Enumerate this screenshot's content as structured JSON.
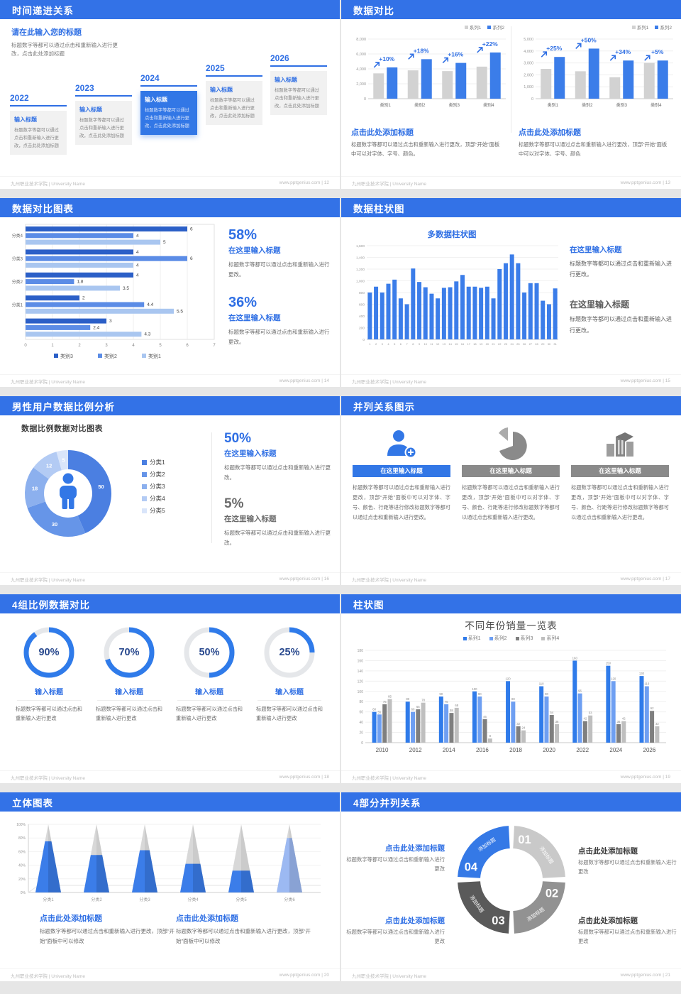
{
  "footer": {
    "left": "九州职业技术学院 | University Name",
    "site": "www.pptgenius.com"
  },
  "colors": {
    "primary": "#3372e7",
    "accent_text": "#2f6fe4",
    "bar_blue": "#3b7de9",
    "bar_gray": "#d2d2d2"
  },
  "slides": [
    {
      "id": "12",
      "title": "时间递进关系",
      "footer_right": "www.pptgenius.com | 12",
      "intro_heading": "请在此输入您的标题",
      "intro_body": "标题数字等都可以通过点击和重新输入进行更改，点击此处添加标题",
      "timeline": {
        "item_title": "输入标题",
        "item_body": "标题数字等都可以通过点击和重新输入进行更改，点击此处添加标题",
        "years": [
          "2022",
          "2023",
          "2024",
          "2025",
          "2026"
        ],
        "highlight_index": 2
      }
    },
    {
      "id": "13",
      "title": "数据对比",
      "footer_right": "www.pptgenius.com | 13",
      "panels": [
        {
          "heading": "点击此处添加标题",
          "body": "标题数字等都可以通过点击和重新输入进行更改，顶部“开始”面板中可以对字体、字号、颜色。",
          "chart": {
            "type": "bar",
            "categories": [
              "类别1",
              "类别2",
              "类别3",
              "类别4"
            ],
            "series": [
              {
                "name": "系列1",
                "color": "#d2d2d2",
                "values": [
                  3400,
                  3800,
                  3700,
                  4300
                ]
              },
              {
                "name": "系列2",
                "color": "#3b7de9",
                "values": [
                  4200,
                  5300,
                  4800,
                  6200
                ]
              }
            ],
            "annotations": [
              "+10%",
              "+18%",
              "+16%",
              "+22%"
            ],
            "ylim": [
              0,
              8000
            ],
            "ystep": 2000
          }
        },
        {
          "heading": "点击此处添加标题",
          "body": "标题数字等都可以通过点击和重新输入进行更改，顶部“开始”面板中可以对字体、字号、颜色",
          "chart": {
            "type": "bar",
            "categories": [
              "类别1",
              "类别2",
              "类别3",
              "类别4"
            ],
            "series": [
              {
                "name": "系列1",
                "color": "#d2d2d2",
                "values": [
                  2500,
                  2300,
                  1800,
                  3000
                ]
              },
              {
                "name": "系列2",
                "color": "#3b7de9",
                "values": [
                  3500,
                  4200,
                  3200,
                  3200
                ]
              }
            ],
            "annotations": [
              "+25%",
              "+50%",
              "+34%",
              "+5%"
            ],
            "ylim": [
              0,
              5000
            ],
            "ystep": 1000
          }
        }
      ]
    },
    {
      "id": "14",
      "title": "数据对比图表",
      "footer_right": "www.pptgenius.com | 14",
      "chart": {
        "type": "bar-horizontal",
        "xlim": [
          0,
          7
        ],
        "xstep": 1,
        "series_names": [
          "类别3",
          "类别2",
          "类别1"
        ],
        "series_colors": [
          "#2b5fc7",
          "#5b8ce6",
          "#a9c6f0"
        ],
        "groups": [
          {
            "label": "分类4",
            "values": [
              6,
              4,
              5
            ]
          },
          {
            "label": "分类3",
            "values": [
              4,
              6,
              4
            ]
          },
          {
            "label": "分类2",
            "values": [
              4,
              1.8,
              3.5
            ]
          },
          {
            "label": "分类1",
            "values": [
              2,
              4.4,
              5.5
            ]
          },
          {
            "label": "",
            "values": [
              3,
              2.4,
              4.3
            ]
          }
        ]
      },
      "stats": [
        {
          "value": "58%",
          "heading": "在这里输入标题",
          "body": "标题数字等都可以通过点击和重新输入进行更改。",
          "accent": true
        },
        {
          "value": "36%",
          "heading": "在这里输入标题",
          "body": "标题数字等都可以通过点击和重新输入进行更改。",
          "accent": true
        }
      ]
    },
    {
      "id": "15",
      "title": "数据柱状图",
      "footer_right": "www.pptgenius.com | 15",
      "chart": {
        "type": "bar",
        "title": "多数据柱状图",
        "color": "#3b7de9",
        "x": [
          1,
          2,
          3,
          4,
          5,
          6,
          7,
          8,
          9,
          10,
          11,
          12,
          13,
          14,
          15,
          16,
          17,
          18,
          19,
          20,
          21,
          22,
          23,
          24,
          25,
          26,
          27,
          28,
          29,
          30,
          31
        ],
        "values": [
          800,
          900,
          800,
          950,
          1020,
          700,
          600,
          1210,
          980,
          890,
          780,
          700,
          880,
          890,
          990,
          1100,
          900,
          900,
          880,
          900,
          700,
          1200,
          1300,
          1450,
          1300,
          800,
          960,
          960,
          660,
          600,
          870
        ],
        "ylim": [
          0,
          1600
        ],
        "ystep": 200
      },
      "blocks": [
        {
          "heading": "在这里输入标题",
          "body": "标题数字等都可以通过点击和重新输入进行更改。",
          "accent": true
        },
        {
          "heading": "在这里输入标题",
          "body": "标题数字等都可以通过点击和重新输入进行更改。",
          "accent": false
        }
      ]
    },
    {
      "id": "16",
      "title": "男性用户数据比例分析",
      "footer_right": "www.pptgenius.com | 16",
      "chart": {
        "type": "pie",
        "donut": true,
        "title": "数据比例数据对比图表",
        "labels": [
          "分类1",
          "分类2",
          "分类3",
          "分类4",
          "分类5"
        ],
        "values": [
          50,
          30,
          18,
          12,
          5
        ],
        "colors": [
          "#4b7fe1",
          "#6695e8",
          "#8cb0ee",
          "#b3cbf4",
          "#d9e5fa"
        ],
        "center_icon": "male-person"
      },
      "stats": [
        {
          "value": "50%",
          "heading": "在这里输入标题",
          "body": "标题数字等都可以通过点击和重新输入进行更改。",
          "accent": true
        },
        {
          "value": "5%",
          "heading": "在这里输入标题",
          "body": "标题数字等都可以通过点击和重新输入进行更改。",
          "accent": false
        }
      ]
    },
    {
      "id": "17",
      "title": "并列关系图示",
      "footer_right": "www.pptgenius.com | 17",
      "columns": [
        {
          "icon": "person-add-icon",
          "accent": true,
          "heading": "在这里输入标题",
          "body": "标题数字等都可以通过点击和重新输入进行更改，顶部“开始”面板中可以对字体、字号、颜色、行距等进行修改标题数字等都可以通过点击和重新输入进行更改。"
        },
        {
          "icon": "pie-chart-icon",
          "accent": false,
          "heading": "在这里输入标题",
          "body": "标题数字等都可以通过点击和重新输入进行更改，顶部“开始”面板中可以对字体、字号、颜色、行距等进行修改标题数字等都可以通过点击和重新输入进行更改。"
        },
        {
          "icon": "building-icon",
          "accent": false,
          "heading": "在这里输入标题",
          "body": "标题数字等都可以通过点击和重新输入进行更改，顶部“开始”面板中可以对字体、字号、颜色、行距等进行修改标题数字等都可以通过点击和重新输入进行更改。"
        }
      ]
    },
    {
      "id": "18",
      "title": "4组比例数据对比",
      "footer_right": "www.pptgenius.com | 18",
      "chart": {
        "type": "pie",
        "note": "progress rings",
        "values": [
          90,
          70,
          50,
          25
        ]
      },
      "rings": [
        {
          "percent": 90,
          "label": "90%",
          "heading": "输入标题",
          "body": "标题数字等都可以通过点击和重新输入进行更改"
        },
        {
          "percent": 70,
          "label": "70%",
          "heading": "输入标题",
          "body": "标题数字等都可以通过点击和重新输入进行更改"
        },
        {
          "percent": 50,
          "label": "50%",
          "heading": "输入标题",
          "body": "标题数字等都可以通过点击和重新输入进行更改"
        },
        {
          "percent": 25,
          "label": "25%",
          "heading": "输入标题",
          "body": "标题数字等都可以通过点击和重新输入进行更改"
        }
      ]
    },
    {
      "id": "19",
      "title": "柱状图",
      "footer_right": "www.pptgenius.com | 19",
      "chart": {
        "type": "bar",
        "title": "不同年份销量一览表",
        "categories": [
          "2010",
          "2012",
          "2014",
          "2016",
          "2018",
          "2020",
          "2022",
          "2024",
          "2026"
        ],
        "series": [
          {
            "name": "系列1",
            "color": "#2f7bea",
            "values": [
              60,
              80,
              90,
              100,
              120,
              110,
              160,
              150,
              130
            ]
          },
          {
            "name": "系列2",
            "color": "#6e9ff2",
            "values": [
              55,
              60,
              75,
              90,
              80,
              90,
              96,
              120,
              110
            ]
          },
          {
            "name": "系列3",
            "color": "#7f7f7f",
            "values": [
              75,
              65,
              58,
              46,
              32,
              54,
              42,
              36,
              62
            ]
          },
          {
            "name": "系列4",
            "color": "#bfbfbf",
            "values": [
              85,
              78,
              68,
              8,
              24,
              36,
              53,
              42,
              32
            ]
          }
        ],
        "ylim": [
          0,
          180
        ],
        "ystep": 20
      }
    },
    {
      "id": "20",
      "title": "立体图表",
      "footer_right": "www.pptgenius.com | 20",
      "chart": {
        "type": "bar",
        "note": "3D cone chart",
        "categories": [
          "分类1",
          "分类2",
          "分类3",
          "分类4",
          "分类5",
          "分类6"
        ],
        "fill_percent": [
          75,
          55,
          62,
          42,
          32,
          80
        ],
        "cone_colors": [
          "#3b7de9",
          "#3b7de9",
          "#3b7de9",
          "#3b7de9",
          "#3b7de9",
          "#9cb9f2"
        ],
        "ylabels": [
          "0%",
          "20%",
          "40%",
          "60%",
          "80%",
          "100%"
        ]
      },
      "blocks": [
        {
          "heading": "点击此处添加标题",
          "body": "标题数字等都可以通过点击和重新输入进行更改，顶部“开始”面板中可以修改"
        },
        {
          "heading": "点击此处添加标题",
          "body": "标题数字等都可以通过点击和重新输入进行更改，顶部“开始”面板中可以修改"
        }
      ]
    },
    {
      "id": "21",
      "title": "4部分并列关系",
      "footer_right": "www.pptgenius.com | 21",
      "segments": [
        {
          "num": "01",
          "label": "添加标题",
          "color": "#c9c9c9"
        },
        {
          "num": "02",
          "label": "添加标题",
          "color": "#929292"
        },
        {
          "num": "03",
          "label": "添加标题",
          "color": "#5a5a5a"
        },
        {
          "num": "04",
          "label": "添加标题",
          "color": "#3579e6"
        }
      ],
      "blocks": [
        {
          "heading": "点击此处添加标题",
          "body": "标题数字等都可以通过点击和重新输入进行更改",
          "accent": true,
          "align": "right"
        },
        {
          "heading": "点击此处添加标题",
          "body": "标题数字等都可以通过点击和重新输入进行更改",
          "accent": false,
          "align": "left"
        },
        {
          "heading": "点击此处添加标题",
          "body": "标题数字等都可以通过点击和重新输入进行更改",
          "accent": true,
          "align": "right"
        },
        {
          "heading": "点击此处添加标题",
          "body": "标题数字等都可以通过点击和重新输入进行更改",
          "accent": false,
          "align": "left"
        }
      ]
    }
  ]
}
